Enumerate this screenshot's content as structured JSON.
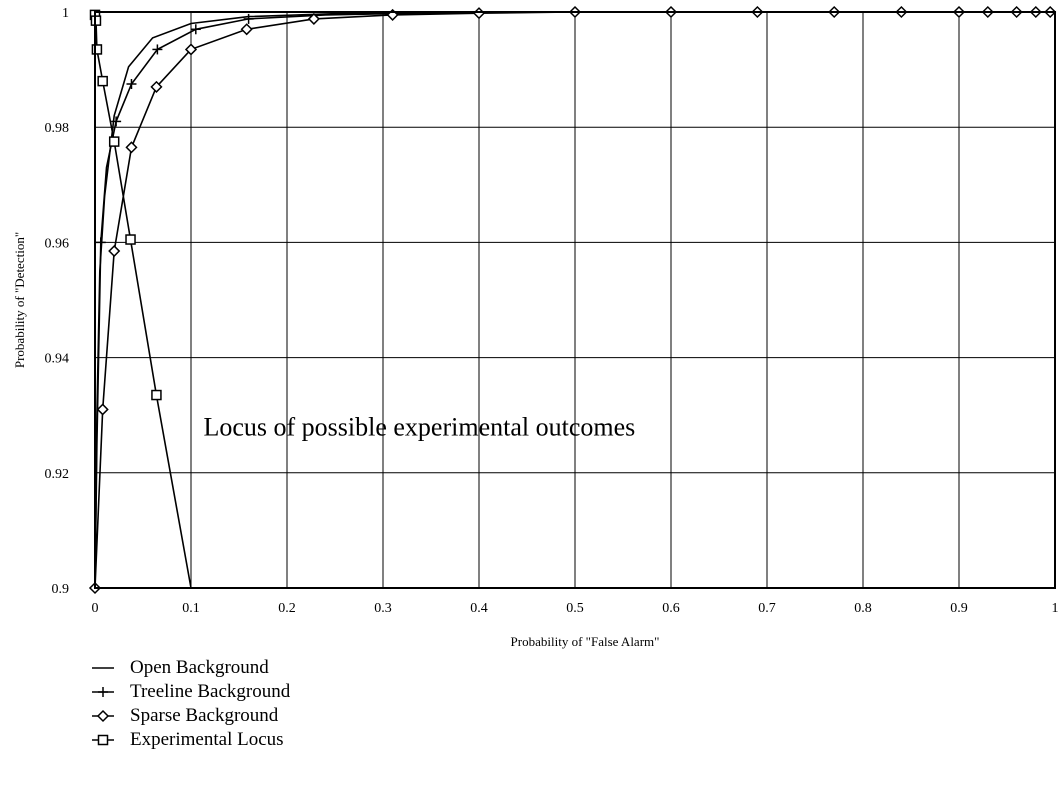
{
  "chart_data": {
    "type": "line",
    "xlabel": "Probability of \"False Alarm\"",
    "ylabel": "Probability of \"Detection\"",
    "xlim": [
      0,
      1
    ],
    "ylim": [
      0.9,
      1
    ],
    "x_ticks": [
      "0",
      "0.1",
      "0.2",
      "0.3",
      "0.4",
      "0.5",
      "0.6",
      "0.7",
      "0.8",
      "0.9",
      "1"
    ],
    "y_ticks": [
      "0.9",
      "0.92",
      "0.94",
      "0.96",
      "0.98",
      "1"
    ],
    "grid": true,
    "legend_position": "bottom-left",
    "annotation": "Locus of possible experimental outcomes",
    "series": [
      {
        "name": "Open Background",
        "marker": "none",
        "x": [
          0.0,
          0.002,
          0.005,
          0.01,
          0.02,
          0.035,
          0.06,
          0.1,
          0.16,
          0.25,
          0.35,
          0.5,
          0.7,
          1.0
        ],
        "y": [
          0.9,
          0.93,
          0.955,
          0.968,
          0.982,
          0.9905,
          0.9955,
          0.998,
          0.9992,
          0.9997,
          0.9999,
          1.0,
          1.0,
          1.0
        ]
      },
      {
        "name": "Treeline Background",
        "marker": "plus",
        "x": [
          0.0,
          0.002,
          0.006,
          0.012,
          0.022,
          0.038,
          0.065,
          0.105,
          0.16,
          0.24,
          0.33,
          0.45,
          0.6,
          0.8,
          1.0
        ],
        "y": [
          0.9,
          0.925,
          0.96,
          0.973,
          0.981,
          0.9875,
          0.9935,
          0.997,
          0.9988,
          0.9995,
          0.9998,
          1.0,
          1.0,
          1.0,
          1.0
        ],
        "marker_indices": [
          2,
          4,
          5,
          6,
          7,
          8
        ]
      },
      {
        "name": "Sparse Background",
        "marker": "diamond",
        "x": [
          0.0,
          0.008,
          0.02,
          0.038,
          0.064,
          0.1,
          0.158,
          0.228,
          0.31,
          0.4,
          0.5,
          0.6,
          0.69,
          0.77,
          0.84,
          0.9,
          0.93,
          0.96,
          0.98,
          0.995
        ],
        "y": [
          0.9,
          0.931,
          0.9585,
          0.9765,
          0.987,
          0.9935,
          0.997,
          0.9988,
          0.9995,
          0.9998,
          1.0,
          1.0,
          1.0,
          1.0,
          1.0,
          1.0,
          1.0,
          1.0,
          1.0,
          1.0
        ]
      },
      {
        "name": "Experimental Locus",
        "marker": "square",
        "x": [
          0.0,
          0.001,
          0.002,
          0.008,
          0.02,
          0.037,
          0.064,
          0.1
        ],
        "y": [
          0.9995,
          0.9985,
          0.9935,
          0.988,
          0.9775,
          0.9605,
          0.9335,
          0.9
        ],
        "marker_indices": [
          0,
          1,
          2,
          3,
          4,
          5,
          6
        ]
      }
    ]
  },
  "legend": [
    {
      "label": "Open Background",
      "marker": "none"
    },
    {
      "label": "Treeline Background",
      "marker": "plus"
    },
    {
      "label": "Sparse Background",
      "marker": "diamond"
    },
    {
      "label": "Experimental Locus",
      "marker": "square"
    }
  ]
}
